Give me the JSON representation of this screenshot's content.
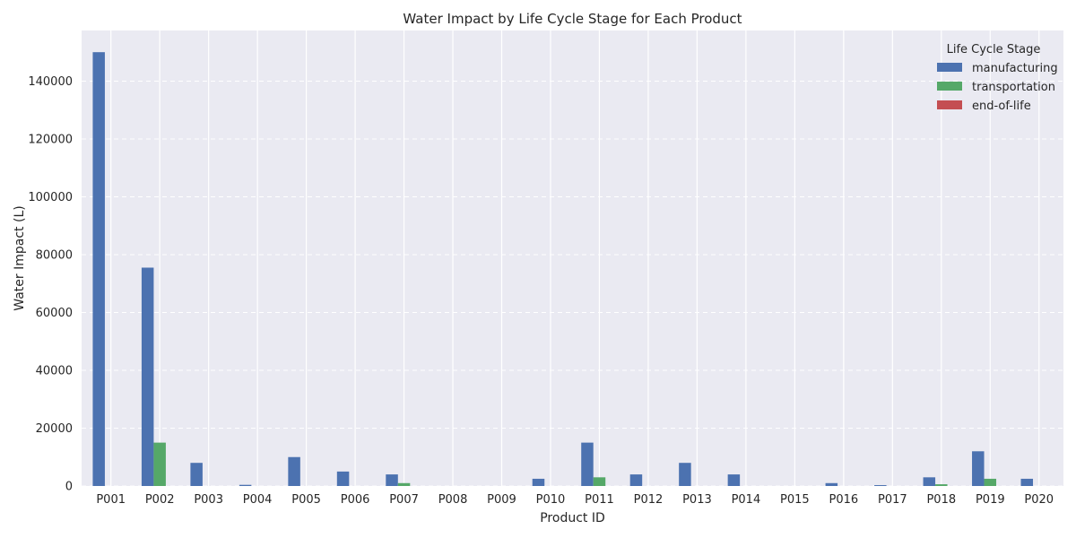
{
  "chart_data": {
    "type": "bar",
    "title": "Water Impact by Life Cycle Stage for Each Product",
    "xlabel": "Product ID",
    "ylabel": "Water Impact (L)",
    "ylim": [
      0,
      157500
    ],
    "yticks": [
      0,
      20000,
      40000,
      60000,
      80000,
      100000,
      120000,
      140000
    ],
    "grid": true,
    "legend_title": "Life Cycle Stage",
    "legend_placement": "top-right",
    "categories": [
      "P001",
      "P002",
      "P003",
      "P004",
      "P005",
      "P006",
      "P007",
      "P008",
      "P009",
      "P010",
      "P011",
      "P012",
      "P013",
      "P014",
      "P015",
      "P016",
      "P017",
      "P018",
      "P019",
      "P020"
    ],
    "series": [
      {
        "name": "manufacturing",
        "color": "#4c72b0",
        "values": [
          150000,
          75500,
          8000,
          400,
          10000,
          5000,
          4000,
          0,
          0,
          2500,
          15000,
          4000,
          8000,
          4000,
          0,
          1000,
          300,
          3000,
          12000,
          2500
        ]
      },
      {
        "name": "transportation",
        "color": "#55a868",
        "values": [
          0,
          15000,
          0,
          0,
          0,
          0,
          1000,
          0,
          0,
          0,
          3000,
          0,
          0,
          0,
          0,
          0,
          0,
          600,
          2500,
          0
        ]
      },
      {
        "name": "end-of-life",
        "color": "#c44e52",
        "values": [
          0,
          0,
          0,
          0,
          0,
          0,
          0,
          0,
          0,
          0,
          0,
          0,
          0,
          0,
          0,
          0,
          0,
          0,
          0,
          0
        ]
      }
    ]
  }
}
